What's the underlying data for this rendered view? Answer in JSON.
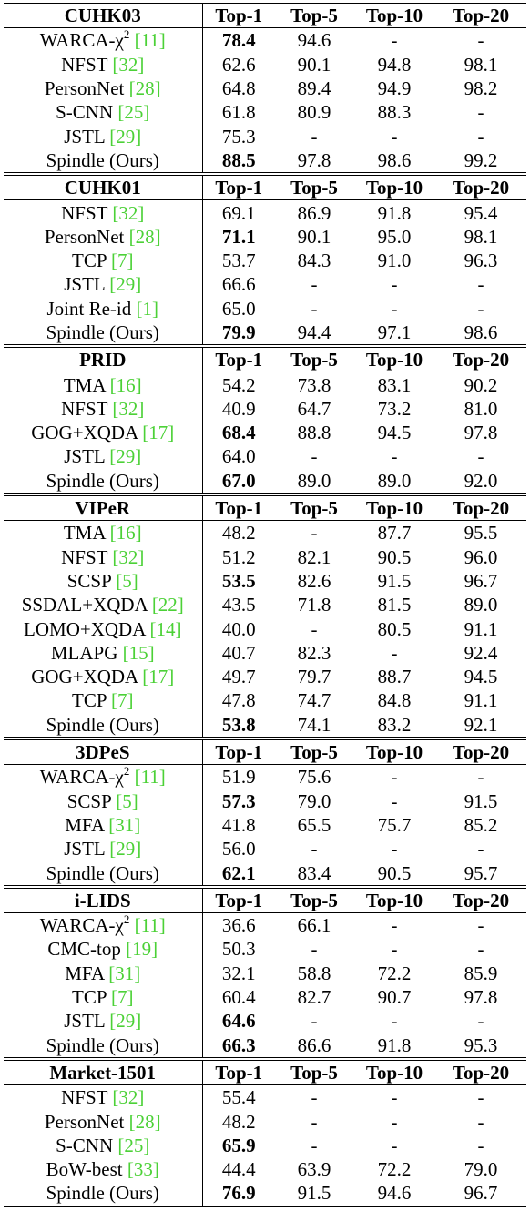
{
  "columns": [
    "Top-1",
    "Top-5",
    "Top-10",
    "Top-20"
  ],
  "blocks": [
    {
      "dataset": "CUHK03",
      "rows": [
        {
          "method": "WARCA-χ",
          "sup": "2",
          "ref": "[11]",
          "values": [
            "78.4",
            "94.6",
            "-",
            "-"
          ],
          "bold": [
            0
          ]
        },
        {
          "method": "NFST",
          "ref": "[32]",
          "values": [
            "62.6",
            "90.1",
            "94.8",
            "98.1"
          ],
          "bold": []
        },
        {
          "method": "PersonNet",
          "ref": "[28]",
          "values": [
            "64.8",
            "89.4",
            "94.9",
            "98.2"
          ],
          "bold": []
        },
        {
          "method": "S-CNN",
          "ref": "[25]",
          "values": [
            "61.8",
            "80.9",
            "88.3",
            "-"
          ],
          "bold": []
        },
        {
          "method": "JSTL",
          "ref": "[29]",
          "values": [
            "75.3",
            "-",
            "-",
            "-"
          ],
          "bold": []
        },
        {
          "method": "Spindle (Ours)",
          "ref": "",
          "values": [
            "88.5",
            "97.8",
            "98.6",
            "99.2"
          ],
          "bold": [
            0
          ]
        }
      ]
    },
    {
      "dataset": "CUHK01",
      "rows": [
        {
          "method": "NFST",
          "ref": "[32]",
          "values": [
            "69.1",
            "86.9",
            "91.8",
            "95.4"
          ],
          "bold": []
        },
        {
          "method": "PersonNet",
          "ref": "[28]",
          "values": [
            "71.1",
            "90.1",
            "95.0",
            "98.1"
          ],
          "bold": [
            0
          ]
        },
        {
          "method": "TCP",
          "ref": "[7]",
          "values": [
            "53.7",
            "84.3",
            "91.0",
            "96.3"
          ],
          "bold": []
        },
        {
          "method": "JSTL",
          "ref": "[29]",
          "values": [
            "66.6",
            "-",
            "-",
            "-"
          ],
          "bold": []
        },
        {
          "method": "Joint Re-id",
          "ref": "[1]",
          "values": [
            "65.0",
            "-",
            "-",
            "-"
          ],
          "bold": []
        },
        {
          "method": "Spindle (Ours)",
          "ref": "",
          "values": [
            "79.9",
            "94.4",
            "97.1",
            "98.6"
          ],
          "bold": [
            0
          ]
        }
      ]
    },
    {
      "dataset": "PRID",
      "rows": [
        {
          "method": "TMA",
          "ref": "[16]",
          "values": [
            "54.2",
            "73.8",
            "83.1",
            "90.2"
          ],
          "bold": []
        },
        {
          "method": "NFST",
          "ref": "[32]",
          "values": [
            "40.9",
            "64.7",
            "73.2",
            "81.0"
          ],
          "bold": []
        },
        {
          "method": "GOG+XQDA",
          "ref": "[17]",
          "values": [
            "68.4",
            "88.8",
            "94.5",
            "97.8"
          ],
          "bold": [
            0
          ]
        },
        {
          "method": "JSTL",
          "ref": "[29]",
          "values": [
            "64.0",
            "-",
            "-",
            "-"
          ],
          "bold": []
        },
        {
          "method": "Spindle (Ours)",
          "ref": "",
          "values": [
            "67.0",
            "89.0",
            "89.0",
            "92.0"
          ],
          "bold": [
            0
          ]
        }
      ]
    },
    {
      "dataset": "VIPeR",
      "rows": [
        {
          "method": "TMA",
          "ref": "[16]",
          "values": [
            "48.2",
            "-",
            "87.7",
            "95.5"
          ],
          "bold": []
        },
        {
          "method": "NFST",
          "ref": "[32]",
          "values": [
            "51.2",
            "82.1",
            "90.5",
            "96.0"
          ],
          "bold": []
        },
        {
          "method": "SCSP",
          "ref": "[5]",
          "values": [
            "53.5",
            "82.6",
            "91.5",
            "96.7"
          ],
          "bold": [
            0
          ]
        },
        {
          "method": "SSDAL+XQDA",
          "ref": "[22]",
          "values": [
            "43.5",
            "71.8",
            "81.5",
            "89.0"
          ],
          "bold": []
        },
        {
          "method": "LOMO+XQDA",
          "ref": "[14]",
          "values": [
            "40.0",
            "-",
            "80.5",
            "91.1"
          ],
          "bold": []
        },
        {
          "method": "MLAPG",
          "ref": "[15]",
          "values": [
            "40.7",
            "82.3",
            "-",
            "92.4"
          ],
          "bold": []
        },
        {
          "method": "GOG+XQDA",
          "ref": "[17]",
          "values": [
            "49.7",
            "79.7",
            "88.7",
            "94.5"
          ],
          "bold": []
        },
        {
          "method": "TCP",
          "ref": "[7]",
          "values": [
            "47.8",
            "74.7",
            "84.8",
            "91.1"
          ],
          "bold": []
        },
        {
          "method": "Spindle (Ours)",
          "ref": "",
          "values": [
            "53.8",
            "74.1",
            "83.2",
            "92.1"
          ],
          "bold": [
            0
          ]
        }
      ]
    },
    {
      "dataset": "3DPeS",
      "rows": [
        {
          "method": "WARCA-χ",
          "sup": "2",
          "ref": "[11]",
          "values": [
            "51.9",
            "75.6",
            "-",
            "-"
          ],
          "bold": []
        },
        {
          "method": "SCSP",
          "ref": "[5]",
          "values": [
            "57.3",
            "79.0",
            "-",
            "91.5"
          ],
          "bold": [
            0
          ]
        },
        {
          "method": "MFA",
          "ref": "[31]",
          "values": [
            "41.8",
            "65.5",
            "75.7",
            "85.2"
          ],
          "bold": []
        },
        {
          "method": "JSTL",
          "ref": "[29]",
          "values": [
            "56.0",
            "-",
            "-",
            "-"
          ],
          "bold": []
        },
        {
          "method": "Spindle (Ours)",
          "ref": "",
          "values": [
            "62.1",
            "83.4",
            "90.5",
            "95.7"
          ],
          "bold": [
            0
          ]
        }
      ]
    },
    {
      "dataset": "i-LIDS",
      "rows": [
        {
          "method": "WARCA-χ",
          "sup": "2",
          "ref": "[11]",
          "values": [
            "36.6",
            "66.1",
            "-",
            "-"
          ],
          "bold": []
        },
        {
          "method": "CMC-top",
          "ref": "[19]",
          "values": [
            "50.3",
            "-",
            "-",
            "-"
          ],
          "bold": []
        },
        {
          "method": "MFA",
          "ref": "[31]",
          "values": [
            "32.1",
            "58.8",
            "72.2",
            "85.9"
          ],
          "bold": []
        },
        {
          "method": "TCP",
          "ref": "[7]",
          "values": [
            "60.4",
            "82.7",
            "90.7",
            "97.8"
          ],
          "bold": []
        },
        {
          "method": "JSTL",
          "ref": "[29]",
          "values": [
            "64.6",
            "-",
            "-",
            "-"
          ],
          "bold": [
            0
          ]
        },
        {
          "method": "Spindle (Ours)",
          "ref": "",
          "values": [
            "66.3",
            "86.6",
            "91.8",
            "95.3"
          ],
          "bold": [
            0
          ]
        }
      ]
    },
    {
      "dataset": "Market-1501",
      "rows": [
        {
          "method": "NFST",
          "ref": "[32]",
          "values": [
            "55.4",
            "-",
            "-",
            "-"
          ],
          "bold": []
        },
        {
          "method": "PersonNet",
          "ref": "[28]",
          "values": [
            "48.2",
            "-",
            "-",
            "-"
          ],
          "bold": []
        },
        {
          "method": "S-CNN",
          "ref": "[25]",
          "values": [
            "65.9",
            "-",
            "-",
            "-"
          ],
          "bold": [
            0
          ]
        },
        {
          "method": "BoW-best",
          "ref": "[33]",
          "values": [
            "44.4",
            "63.9",
            "72.2",
            "79.0"
          ],
          "bold": []
        },
        {
          "method": "Spindle (Ours)",
          "ref": "",
          "values": [
            "76.9",
            "91.5",
            "94.6",
            "96.7"
          ],
          "bold": [
            0
          ]
        }
      ]
    }
  ],
  "colors": {
    "citation": "#4cd137",
    "text": "#000000"
  }
}
